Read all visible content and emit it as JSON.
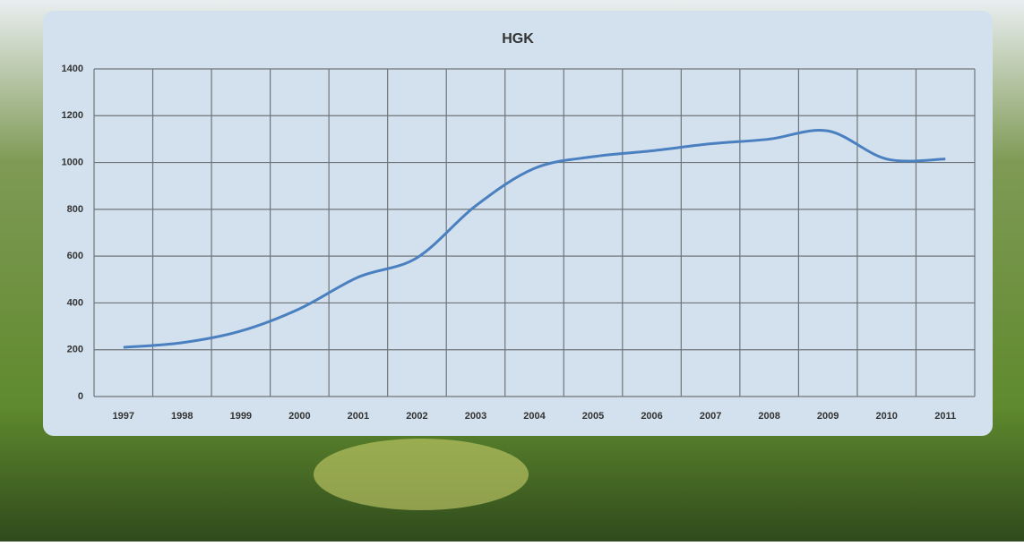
{
  "chart_data": {
    "type": "line",
    "title": "HGK",
    "categories": [
      "1997",
      "1998",
      "1999",
      "2000",
      "2001",
      "2002",
      "2003",
      "2004",
      "2005",
      "2006",
      "2007",
      "2008",
      "2009",
      "2010",
      "2011"
    ],
    "values": [
      210,
      230,
      280,
      375,
      510,
      593,
      815,
      975,
      1025,
      1050,
      1080,
      1100,
      1135,
      1015,
      1015
    ],
    "color": "#4a7fc0",
    "ylim": [
      0,
      1400
    ],
    "yticks": [
      0,
      200,
      400,
      600,
      800,
      1000,
      1200,
      1400
    ],
    "grid": true
  }
}
